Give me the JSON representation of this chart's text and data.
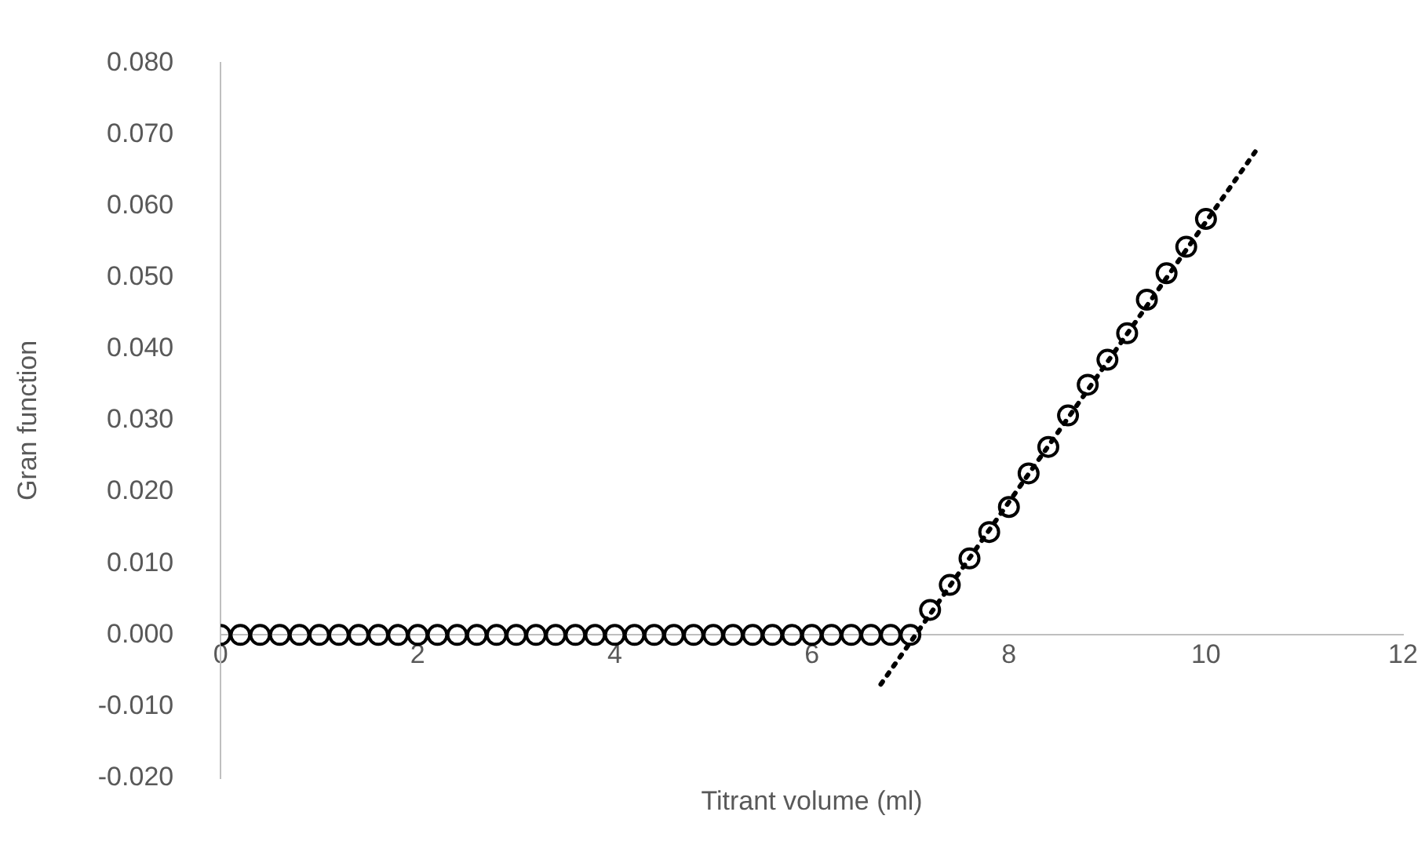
{
  "chart_data": {
    "type": "scatter",
    "xlabel": "Titrant volume (ml)",
    "ylabel": "Gran function",
    "xlim": [
      0,
      12
    ],
    "xticks": [
      0,
      2,
      4,
      6,
      8,
      10,
      12
    ],
    "ylim": [
      -0.02,
      0.08
    ],
    "yticks": [
      {
        "value": -0.02,
        "label": "-0.020"
      },
      {
        "value": -0.01,
        "label": "-0.010"
      },
      {
        "value": 0,
        "label": "0.000"
      },
      {
        "value": 0.01,
        "label": "0.010"
      },
      {
        "value": 0.02,
        "label": "0.020"
      },
      {
        "value": 0.03,
        "label": "0.030"
      },
      {
        "value": 0.04,
        "label": "0.040"
      },
      {
        "value": 0.05,
        "label": "0.050"
      },
      {
        "value": 0.06,
        "label": "0.060"
      },
      {
        "value": 0.07,
        "label": "0.070"
      },
      {
        "value": 0.08,
        "label": "0.080"
      }
    ],
    "grid": false,
    "legend": false,
    "series": [
      {
        "type": "scatter",
        "color": "#000000",
        "marker": "circle",
        "x": [
          0,
          0.2,
          0.4,
          0.6,
          0.8,
          1.0,
          1.2,
          1.4,
          1.6,
          1.8,
          2.0,
          2.2,
          2.4,
          2.6,
          2.8,
          3.0,
          3.2,
          3.4,
          3.6,
          3.8,
          4.0,
          4.2,
          4.4,
          4.6,
          4.8,
          5.0,
          5.2,
          5.4,
          5.6,
          5.8,
          6.0,
          6.2,
          6.4,
          6.6,
          6.8,
          7.0,
          7.2,
          7.4,
          7.6,
          7.8,
          8.0,
          8.2,
          8.4,
          8.6,
          8.8,
          9.0,
          9.2,
          9.4,
          9.6,
          9.8,
          10.0
        ],
        "values": [
          0,
          0,
          0,
          0,
          0,
          0,
          0,
          0,
          0,
          0,
          0,
          0,
          0,
          0,
          0,
          0,
          0,
          0,
          0,
          0,
          0,
          0,
          0,
          0,
          0,
          0,
          0,
          0,
          0,
          0,
          0,
          0,
          0,
          0,
          0,
          0,
          0.0035,
          0.007,
          0.0107,
          0.0144,
          0.0179,
          0.0226,
          0.0263,
          0.0307,
          0.035,
          0.0385,
          0.0422,
          0.0469,
          0.0506,
          0.0543,
          0.0582
        ]
      },
      {
        "type": "line",
        "color": "#000000",
        "line_style": "dotted",
        "marker": "none",
        "x": [
          6.7,
          10.5
        ],
        "values": [
          -0.0069,
          0.0676
        ]
      }
    ]
  }
}
